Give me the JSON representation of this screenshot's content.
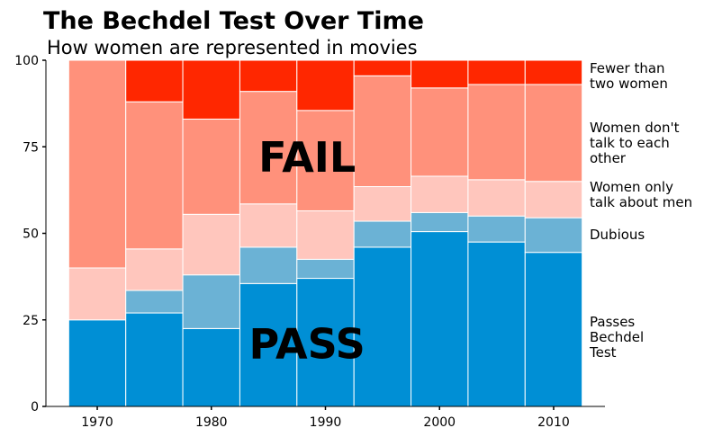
{
  "chart_data": {
    "type": "bar",
    "stacked": true,
    "title": "The Bechdel Test Over Time",
    "subtitle": "How women are represented in movies",
    "xlabel": "",
    "ylabel": "",
    "categories": [
      1970,
      1975,
      1980,
      1985,
      1990,
      1995,
      2000,
      2005,
      2010
    ],
    "xticks": [
      "1970",
      "1980",
      "1990",
      "2000",
      "2010"
    ],
    "yticks": [
      "0",
      "25",
      "50",
      "75",
      "100"
    ],
    "ylim": [
      0,
      100
    ],
    "xlim": [
      1965.5,
      2014.5
    ],
    "grid": false,
    "series": [
      {
        "name": "Passes Bechdel Test",
        "color": "#008fd5",
        "values": [
          25,
          27,
          22.5,
          35.5,
          37,
          46,
          50.5,
          47.5,
          44.5
        ]
      },
      {
        "name": "Dubious",
        "color": "#6bb2d5",
        "values": [
          0,
          6.5,
          15.5,
          10.5,
          5.5,
          7.5,
          5.5,
          7.5,
          10
        ]
      },
      {
        "name": "Women only talk about men",
        "color": "#ffc6bd",
        "values": [
          15,
          12,
          17.5,
          12.5,
          14,
          10,
          10.5,
          10.5,
          10.5
        ]
      },
      {
        "name": "Women don't talk to each other",
        "color": "#ff917b",
        "values": [
          60,
          42.5,
          27.5,
          32.5,
          29,
          32,
          25.5,
          27.5,
          28
        ]
      },
      {
        "name": "Fewer than two women",
        "color": "#ff2700",
        "values": [
          0,
          12,
          17,
          9,
          14.5,
          4.5,
          8,
          7,
          7
        ]
      }
    ],
    "legend_placement": "right",
    "legend": [
      {
        "lines": [
          "Fewer than",
          "two women"
        ]
      },
      {
        "lines": [
          "Women don't",
          "talk to each",
          "other"
        ]
      },
      {
        "lines": [
          "Women only",
          "talk about men"
        ]
      },
      {
        "lines": [
          "Dubious"
        ]
      },
      {
        "lines": [
          "Passes",
          "Bechdel",
          "Test"
        ]
      }
    ],
    "annotations": [
      {
        "text": "FAIL",
        "x": 1988,
        "y": 72
      },
      {
        "text": "PASS",
        "x": 1988,
        "y": 18
      }
    ]
  }
}
